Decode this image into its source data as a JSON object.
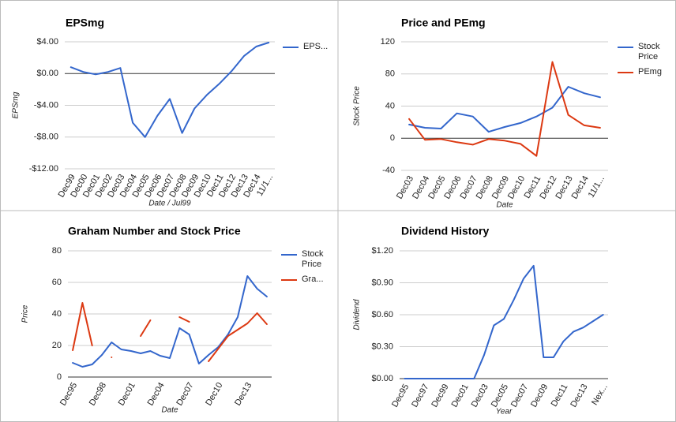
{
  "chart_data": [
    {
      "type": "line",
      "title": "EPSmg",
      "y_label": "EPSmg",
      "x_label": "Date / Jul99",
      "categories": [
        "Dec99",
        "Dec00",
        "Dec01",
        "Dec02",
        "Dec03",
        "Dec04",
        "Dec05",
        "Dec06",
        "Dec07",
        "Dec08",
        "Dec09",
        "Dec10",
        "Dec11",
        "Dec12",
        "Dec13",
        "Dec14",
        "11/1..."
      ],
      "series": [
        {
          "name": "EPS...",
          "color": "#3366cc",
          "values": [
            0.8,
            0.2,
            -0.1,
            0.2,
            0.7,
            -6.2,
            -8.0,
            -5.3,
            -3.2,
            -7.5,
            -4.4,
            -2.7,
            -1.3,
            0.3,
            2.2,
            3.4,
            3.9
          ]
        }
      ],
      "ylim": [
        -12,
        4
      ],
      "yticks": [
        {
          "value": 4,
          "label": "$4.00"
        },
        {
          "value": 0,
          "label": "$0.00"
        },
        {
          "value": -4,
          "label": "-$4.00"
        },
        {
          "value": -8,
          "label": "-$8.00"
        },
        {
          "value": -12,
          "label": "-$12.00"
        }
      ],
      "grid": true,
      "legend": "right"
    },
    {
      "type": "line",
      "title": "Price and PEmg",
      "y_label": "Stock Price",
      "x_label": "Date",
      "categories": [
        "Dec03",
        "Dec04",
        "Dec05",
        "Dec06",
        "Dec07",
        "Dec08",
        "Dec09",
        "Dec10",
        "Dec11",
        "Dec12",
        "Dec13",
        "Dec14",
        "11/1..."
      ],
      "series": [
        {
          "name": "Stock Price",
          "color": "#3366cc",
          "values": [
            17,
            13,
            12,
            31,
            27,
            8,
            14,
            19,
            27,
            38,
            64,
            56,
            51
          ]
        },
        {
          "name": "PEmg",
          "color": "#dc3912",
          "values": [
            24,
            -2,
            -1,
            -5,
            -8,
            -1,
            -3,
            -7,
            -22,
            95,
            29,
            16,
            13
          ]
        }
      ],
      "ylim": [
        -40,
        120
      ],
      "yticks": [
        120,
        80,
        40,
        0,
        -40
      ],
      "grid": true,
      "legend": "right"
    },
    {
      "type": "line",
      "title": "Graham Number and Stock Price",
      "y_label": "Price",
      "x_label": "Date",
      "categories": [
        "Dec95",
        null,
        null,
        "Dec98",
        null,
        null,
        "Dec01",
        null,
        null,
        "Dec04",
        null,
        null,
        "Dec07",
        null,
        null,
        "Dec10",
        null,
        null,
        "Dec13",
        null,
        null
      ],
      "series": [
        {
          "name": "Stock Price",
          "color": "#3366cc",
          "values": [
            9,
            6.5,
            8,
            14,
            22,
            17.5,
            16.5,
            15,
            16.5,
            13.5,
            12,
            31,
            27,
            8.5,
            14,
            19,
            27,
            38,
            64,
            56,
            51
          ]
        },
        {
          "name": "Gra...",
          "color": "#dc3912",
          "values": [
            17,
            47,
            20,
            null,
            12.5,
            null,
            null,
            26,
            36,
            null,
            null,
            38,
            35,
            null,
            10,
            18,
            26,
            30,
            34,
            40.5,
            33.5
          ]
        }
      ],
      "ylim": [
        0,
        80
      ],
      "yticks": [
        0,
        20,
        40,
        60,
        80
      ],
      "grid": true,
      "legend": "right"
    },
    {
      "type": "line",
      "title": "Dividend History",
      "y_label": "Dividend",
      "x_label": "Year",
      "categories": [
        "Dec95",
        null,
        "Dec97",
        null,
        "Dec99",
        null,
        "Dec01",
        null,
        "Dec03",
        null,
        "Dec05",
        null,
        "Dec07",
        null,
        "Dec09",
        null,
        "Dec11",
        null,
        "Dec13",
        null,
        "Nex..."
      ],
      "series": [
        {
          "color": "#3366cc",
          "values": [
            0,
            0,
            0,
            0,
            0,
            0,
            0,
            0,
            0.22,
            0.5,
            0.56,
            0.74,
            0.94,
            1.06,
            0.2,
            0.2,
            0.35,
            0.44,
            0.48,
            0.54,
            0.6
          ]
        }
      ],
      "ylim": [
        0,
        1.2
      ],
      "yticks": [
        {
          "value": 0,
          "label": "$0.00"
        },
        {
          "value": 0.3,
          "label": "$0.30"
        },
        {
          "value": 0.6,
          "label": "$0.60"
        },
        {
          "value": 0.9,
          "label": "$0.90"
        },
        {
          "value": 1.2,
          "label": "$1.20"
        }
      ],
      "grid": true
    }
  ]
}
